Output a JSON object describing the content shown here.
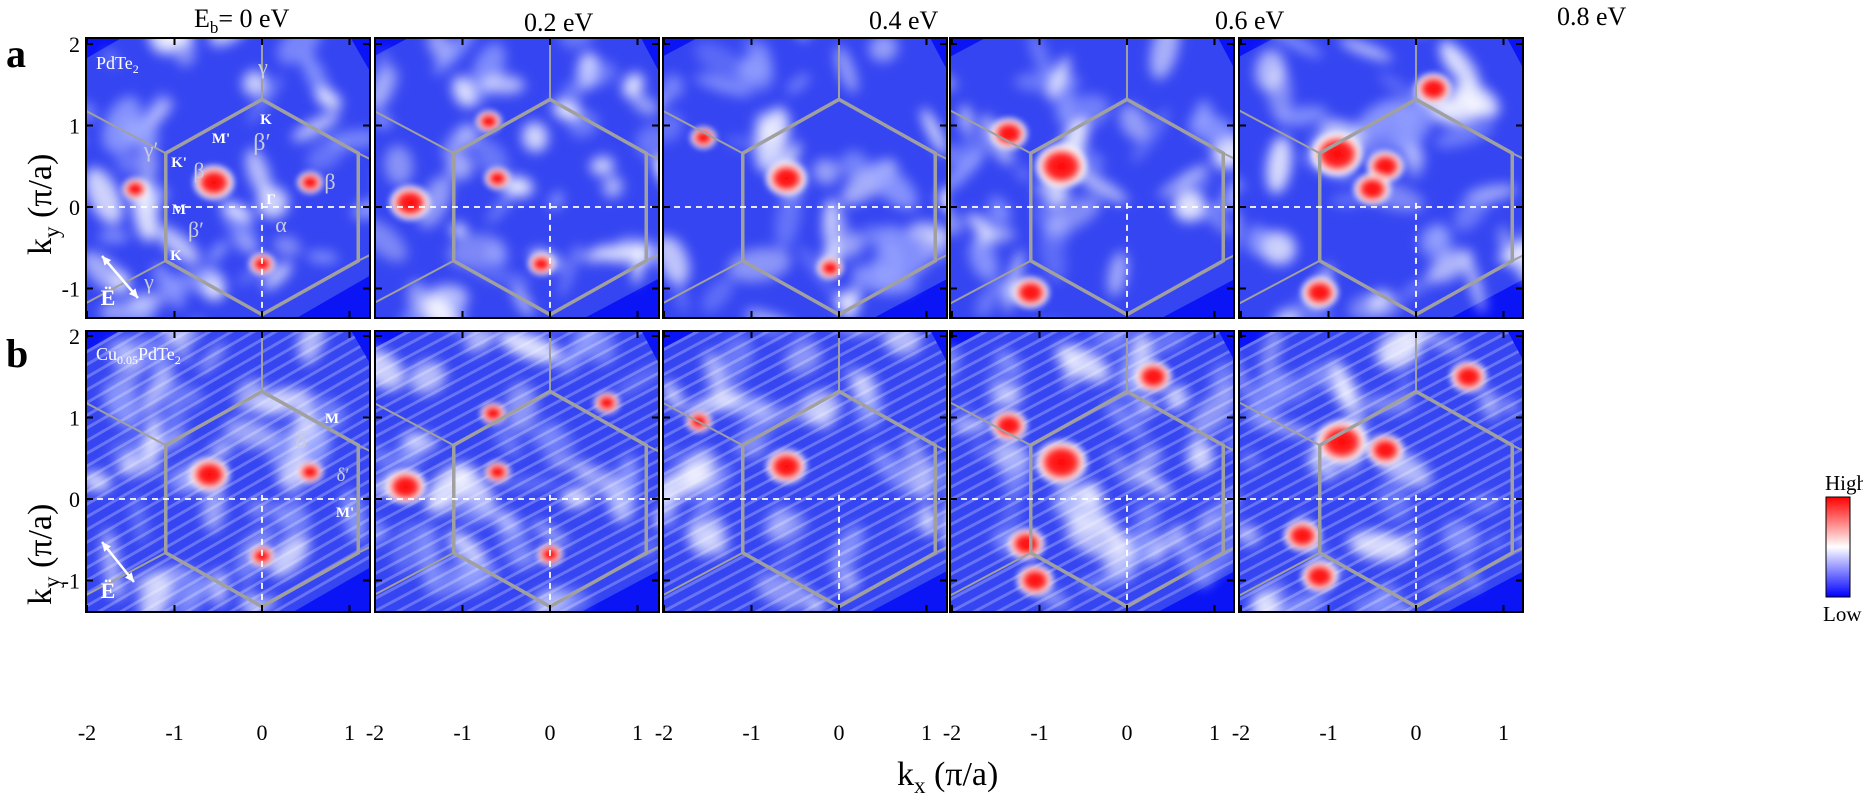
{
  "figure": {
    "row_labels": [
      "a",
      "b"
    ],
    "columns": [
      {
        "label_prefix": "E",
        "label_sub": "b",
        "label_suffix": "= 0 eV"
      },
      {
        "label": "0.2 eV"
      },
      {
        "label": "0.4 eV"
      },
      {
        "label": "0.6 eV"
      },
      {
        "label": "0.8 eV"
      }
    ],
    "sample_labels": {
      "row_a": {
        "main": "PdTe",
        "sub": "2"
      },
      "row_b": {
        "pre": "Cu",
        "sub1": "0.05",
        "main": "PdTe",
        "sub2": "2"
      }
    },
    "axes": {
      "ylabel_main": "k",
      "ylabel_sub": "y",
      "ylabel_unit": " (π/a)",
      "xlabel_main": "k",
      "xlabel_sub": "x",
      "xlabel_unit": " (π/a)",
      "x_ticks": [
        "-2",
        "-1",
        "0",
        "1"
      ],
      "y_ticks": [
        "2",
        "1",
        "0",
        "-1"
      ]
    },
    "annotations_a": {
      "gamma_top": "γ",
      "K_top": "K",
      "beta_prime_top": "β′",
      "gamma_prime": "γ′",
      "M_prime": "M'",
      "K_prime": "K'",
      "beta_left": "β",
      "Gamma": "Γ",
      "beta_right": "β",
      "M": "M",
      "alpha": "α",
      "beta_prime_bottom": "β′",
      "K_bottom": "K",
      "gamma_bottom": "γ",
      "E_vec": "Ë"
    },
    "annotations_b": {
      "M": "M",
      "delta": "δ",
      "delta_prime": "δ′",
      "M_prime": "M'",
      "E_vec": "Ë"
    },
    "colorbar": {
      "high": "High",
      "low": "Low",
      "color_high": "#ff0000",
      "color_mid": "#ffffff",
      "color_low": "#0000ff"
    },
    "colors": {
      "background_fill": "#0a14f5",
      "grid_line": "#a0a0a0",
      "dashed_line": "#ffffff"
    }
  }
}
